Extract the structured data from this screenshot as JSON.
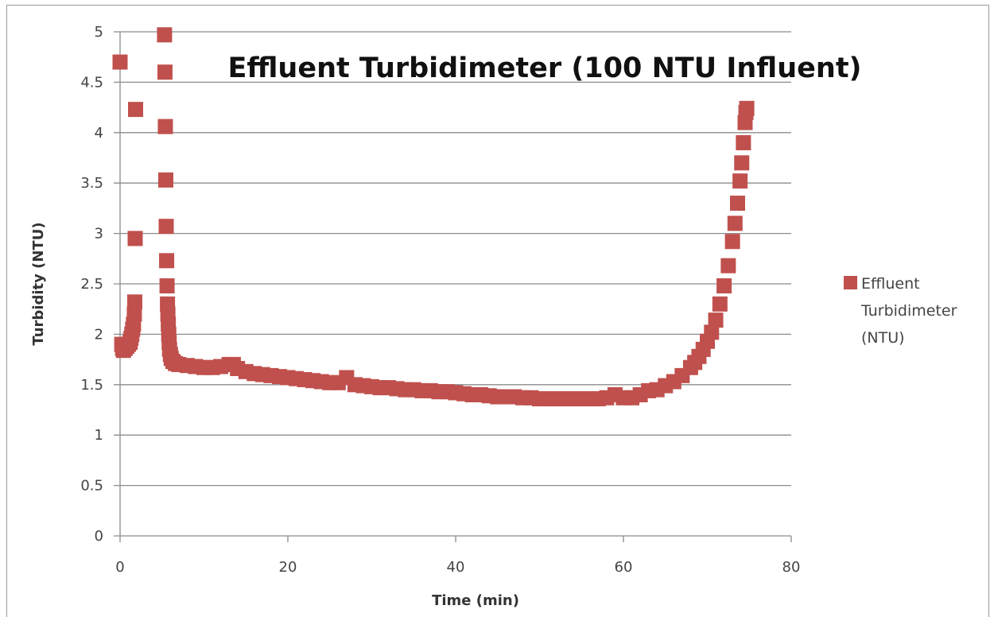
{
  "chart_data": {
    "type": "scatter",
    "title": "Effluent Turbidimeter (100 NTU Influent)",
    "xlabel": "Time (min)",
    "ylabel": "Turbidity (NTU)",
    "xlim": [
      0,
      80
    ],
    "ylim": [
      0,
      5
    ],
    "xticks": [
      "0",
      "20",
      "40",
      "60",
      "80"
    ],
    "yticks": [
      "0",
      "0.5",
      "1",
      "1.5",
      "2",
      "2.5",
      "3",
      "3.5",
      "4",
      "4.5",
      "5"
    ],
    "grid": "horizontal",
    "legend_position": "right",
    "color": "#c0504d",
    "series": [
      {
        "name": "Effluent Turbidimeter (NTU)",
        "legend_lines": [
          "Effluent",
          "Turbidimeter",
          "(NTU)"
        ],
        "points": [
          [
            0,
            4.7
          ],
          [
            0.2,
            1.9
          ],
          [
            0.3,
            1.86
          ],
          [
            0.4,
            1.84
          ],
          [
            0.6,
            1.86
          ],
          [
            0.8,
            1.88
          ],
          [
            1.0,
            1.9
          ],
          [
            1.2,
            1.92
          ],
          [
            1.3,
            1.96
          ],
          [
            1.4,
            2.0
          ],
          [
            1.5,
            2.05
          ],
          [
            1.6,
            2.1
          ],
          [
            1.7,
            2.2
          ],
          [
            1.75,
            2.32
          ],
          [
            1.8,
            2.95
          ],
          [
            1.85,
            4.23
          ],
          [
            5.3,
            4.97
          ],
          [
            5.35,
            4.6
          ],
          [
            5.4,
            4.06
          ],
          [
            5.45,
            3.53
          ],
          [
            5.5,
            3.07
          ],
          [
            5.55,
            2.73
          ],
          [
            5.6,
            2.48
          ],
          [
            5.65,
            2.3
          ],
          [
            5.7,
            2.2
          ],
          [
            5.75,
            2.1
          ],
          [
            5.8,
            2.0
          ],
          [
            5.85,
            1.92
          ],
          [
            5.9,
            1.85
          ],
          [
            6.0,
            1.8
          ],
          [
            6.1,
            1.76
          ],
          [
            6.3,
            1.73
          ],
          [
            6.6,
            1.71
          ],
          [
            7.0,
            1.7
          ],
          [
            8,
            1.69
          ],
          [
            9,
            1.68
          ],
          [
            10,
            1.67
          ],
          [
            11,
            1.67
          ],
          [
            12,
            1.68
          ],
          [
            13,
            1.7
          ],
          [
            13.5,
            1.7
          ],
          [
            14,
            1.66
          ],
          [
            15,
            1.63
          ],
          [
            16,
            1.61
          ],
          [
            17,
            1.6
          ],
          [
            18,
            1.59
          ],
          [
            19,
            1.58
          ],
          [
            20,
            1.57
          ],
          [
            21,
            1.56
          ],
          [
            22,
            1.55
          ],
          [
            23,
            1.54
          ],
          [
            24,
            1.53
          ],
          [
            25,
            1.52
          ],
          [
            26,
            1.52
          ],
          [
            27,
            1.57
          ],
          [
            28,
            1.5
          ],
          [
            29,
            1.49
          ],
          [
            30,
            1.48
          ],
          [
            31,
            1.47
          ],
          [
            32,
            1.47
          ],
          [
            33,
            1.46
          ],
          [
            34,
            1.45
          ],
          [
            35,
            1.45
          ],
          [
            36,
            1.44
          ],
          [
            37,
            1.44
          ],
          [
            38,
            1.43
          ],
          [
            39,
            1.43
          ],
          [
            40,
            1.42
          ],
          [
            41,
            1.41
          ],
          [
            42,
            1.4
          ],
          [
            43,
            1.4
          ],
          [
            44,
            1.39
          ],
          [
            45,
            1.38
          ],
          [
            46,
            1.38
          ],
          [
            47,
            1.38
          ],
          [
            48,
            1.37
          ],
          [
            49,
            1.37
          ],
          [
            50,
            1.36
          ],
          [
            51,
            1.36
          ],
          [
            52,
            1.36
          ],
          [
            53,
            1.36
          ],
          [
            54,
            1.36
          ],
          [
            55,
            1.36
          ],
          [
            56,
            1.36
          ],
          [
            57,
            1.36
          ],
          [
            58,
            1.37
          ],
          [
            59,
            1.4
          ],
          [
            60,
            1.37
          ],
          [
            61,
            1.37
          ],
          [
            62,
            1.4
          ],
          [
            63,
            1.44
          ],
          [
            64,
            1.45
          ],
          [
            65,
            1.49
          ],
          [
            66,
            1.53
          ],
          [
            67,
            1.59
          ],
          [
            68,
            1.67
          ],
          [
            68.5,
            1.72
          ],
          [
            69,
            1.78
          ],
          [
            69.5,
            1.85
          ],
          [
            70,
            1.93
          ],
          [
            70.5,
            2.02
          ],
          [
            71,
            2.14
          ],
          [
            71.5,
            2.3
          ],
          [
            72,
            2.48
          ],
          [
            72.5,
            2.68
          ],
          [
            73,
            2.92
          ],
          [
            73.3,
            3.1
          ],
          [
            73.6,
            3.3
          ],
          [
            73.9,
            3.52
          ],
          [
            74.1,
            3.7
          ],
          [
            74.3,
            3.9
          ],
          [
            74.5,
            4.1
          ],
          [
            74.6,
            4.2
          ],
          [
            74.7,
            4.24
          ]
        ]
      }
    ]
  }
}
